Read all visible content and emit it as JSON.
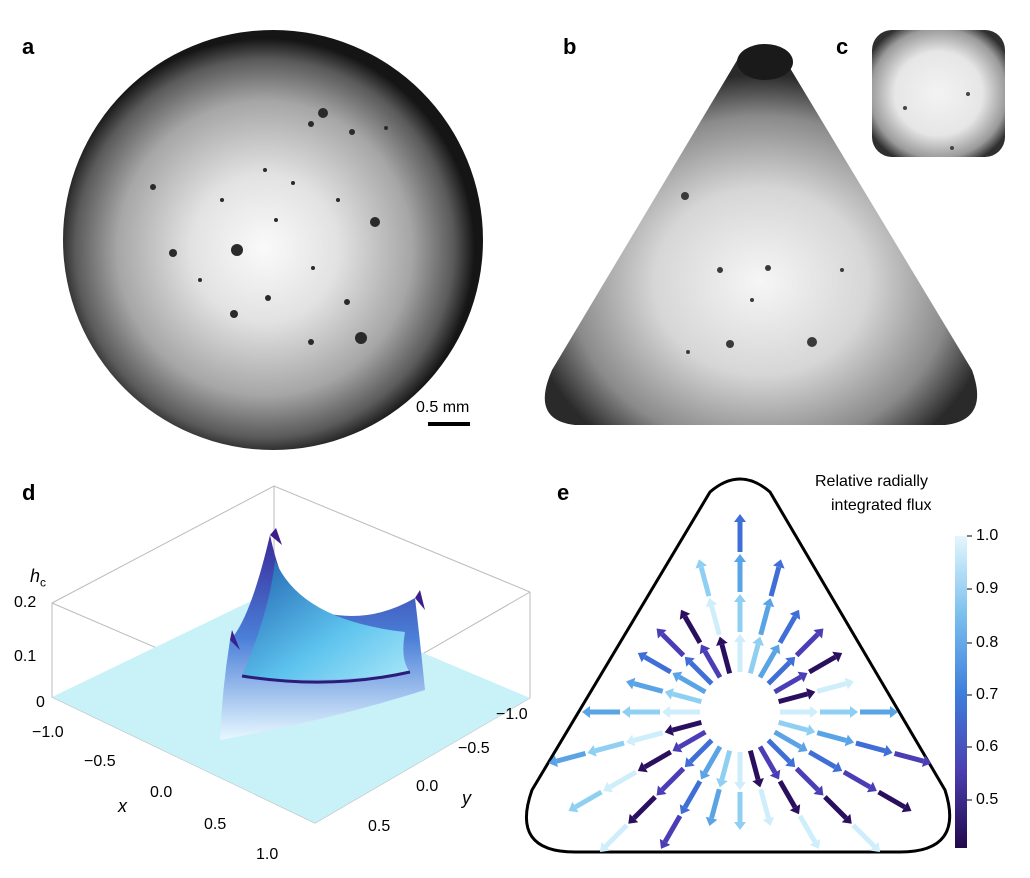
{
  "panels": {
    "a": {
      "label": "a",
      "scale_bar": "0.5 mm"
    },
    "b": {
      "label": "b"
    },
    "c": {
      "label": "c"
    },
    "d": {
      "label": "d",
      "z_axis_label": "h",
      "z_axis_subscript": "c",
      "z_ticks": [
        "0.2",
        "0.1",
        "0"
      ],
      "x_axis_label": "x",
      "x_ticks": [
        "−1.0",
        "−0.5",
        "0.0",
        "0.5",
        "1.0"
      ],
      "y_axis_label": "y",
      "y_ticks": [
        "−1.0",
        "−0.5",
        "0.0",
        "0.5"
      ]
    },
    "e": {
      "label": "e",
      "colorbar_title_line1": "Relative radially",
      "colorbar_title_line2": "integrated flux",
      "colorbar_ticks": [
        "1.0",
        "0.9",
        "0.8",
        "0.7",
        "0.6",
        "0.5"
      ]
    }
  },
  "colors": {
    "flux_low": "#2a0f5e",
    "flux_mid": "#3f6fd6",
    "flux_high": "#cfeefb",
    "surface_base": "#c9f1f8"
  }
}
